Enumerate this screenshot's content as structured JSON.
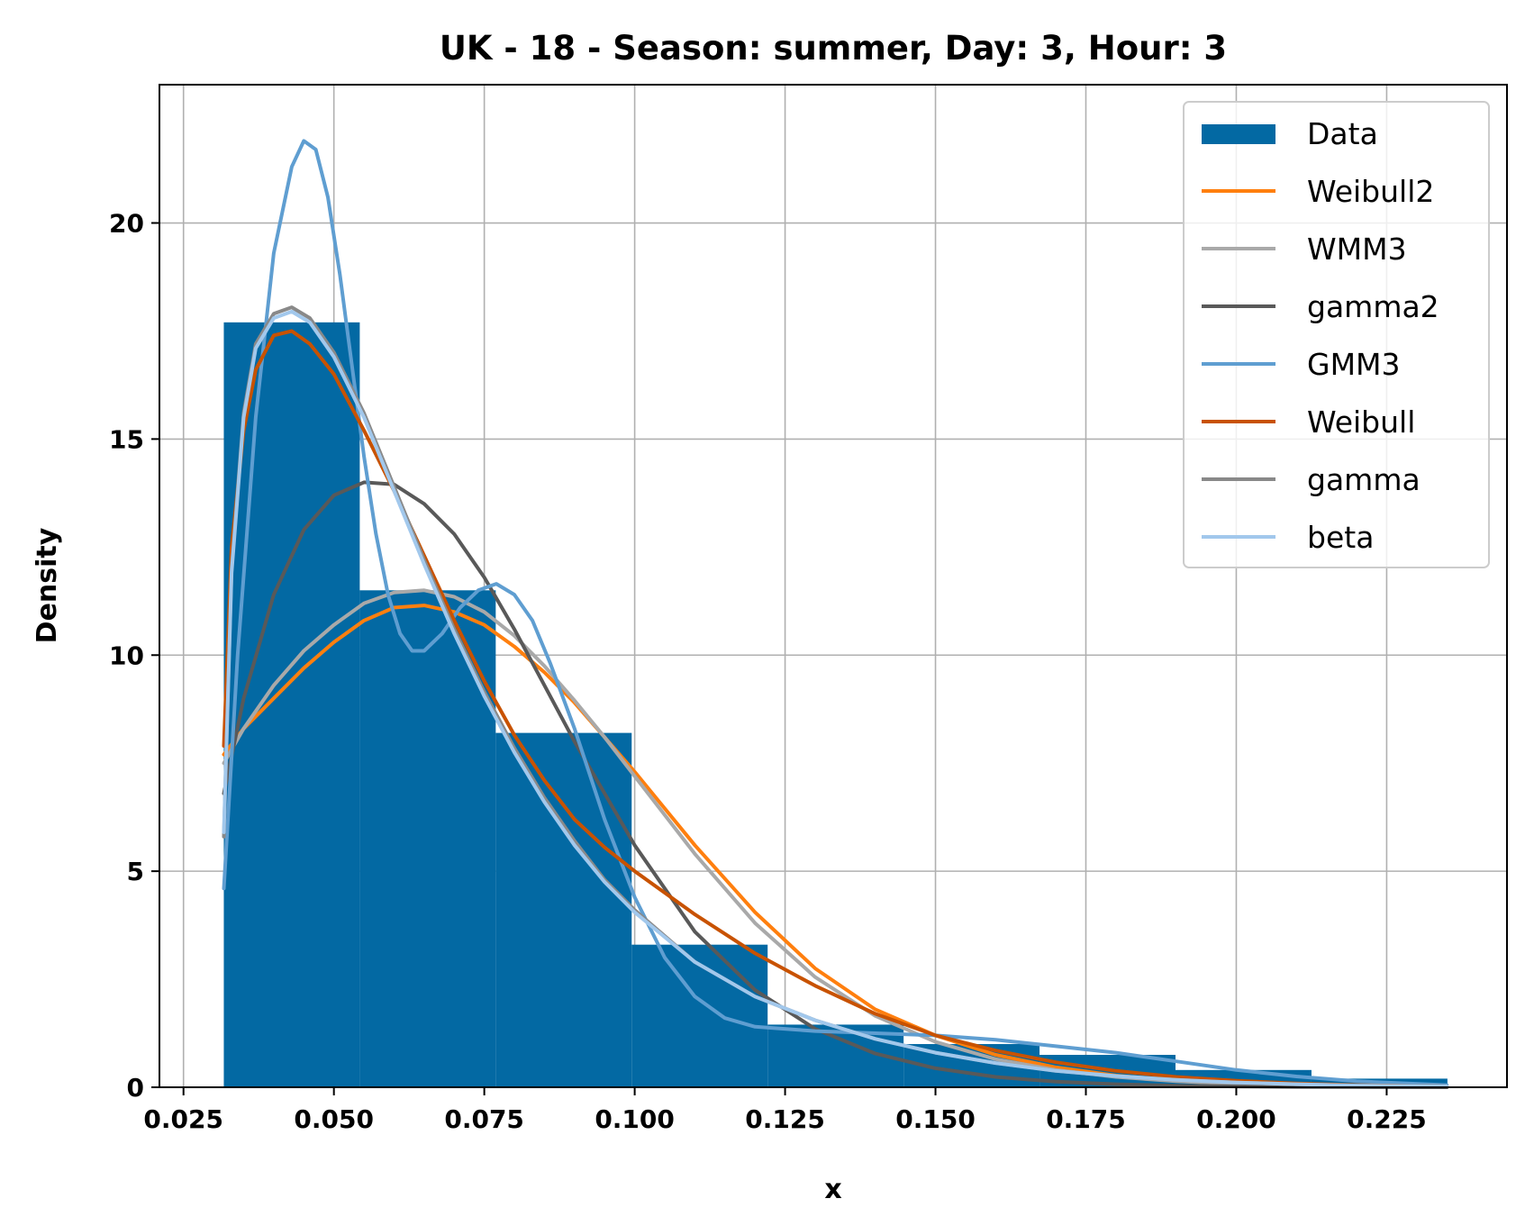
{
  "chart_data": {
    "type": "histogram+line",
    "title": "UK - 18 - Season: summer, Day: 3, Hour: 3",
    "xlabel": "x",
    "ylabel": "Density",
    "xlim": [
      0.021,
      0.245
    ],
    "ylim": [
      0,
      23.2
    ],
    "xticks": [
      0.025,
      0.05,
      0.075,
      0.1,
      0.125,
      0.15,
      0.175,
      0.2,
      0.225
    ],
    "xtick_labels": [
      "0.025",
      "0.050",
      "0.075",
      "0.100",
      "0.125",
      "0.150",
      "0.175",
      "0.200",
      "0.225"
    ],
    "yticks": [
      0,
      5,
      10,
      15,
      20
    ],
    "ytick_labels": [
      "0",
      "5",
      "10",
      "15",
      "20"
    ],
    "grid": true,
    "legend_position": "top-right",
    "histogram": {
      "name": "Data",
      "color": "#0369a3",
      "bin_edges": [
        0.0317,
        0.0543,
        0.0769,
        0.0995,
        0.1221,
        0.1447,
        0.1673,
        0.1899,
        0.2125,
        0.2351
      ],
      "densities": [
        17.7,
        11.5,
        8.2,
        3.3,
        1.45,
        1.0,
        0.75,
        0.4,
        0.2
      ]
    },
    "series": [
      {
        "name": "Weibull2",
        "color": "#ff7f0e",
        "x": [
          0.0317,
          0.035,
          0.04,
          0.045,
          0.05,
          0.055,
          0.06,
          0.065,
          0.07,
          0.075,
          0.08,
          0.085,
          0.09,
          0.095,
          0.1,
          0.11,
          0.12,
          0.13,
          0.14,
          0.15,
          0.16,
          0.17,
          0.18,
          0.19,
          0.2,
          0.21,
          0.22,
          0.235
        ],
        "y": [
          7.7,
          8.3,
          9.0,
          9.7,
          10.3,
          10.8,
          11.1,
          11.15,
          11.0,
          10.7,
          10.2,
          9.6,
          8.9,
          8.1,
          7.3,
          5.6,
          4.05,
          2.75,
          1.8,
          1.2,
          0.75,
          0.46,
          0.27,
          0.15,
          0.08,
          0.04,
          0.02,
          0.0
        ]
      },
      {
        "name": "WMM3",
        "color": "#a9a9a9",
        "x": [
          0.0317,
          0.035,
          0.04,
          0.045,
          0.05,
          0.055,
          0.06,
          0.065,
          0.07,
          0.075,
          0.08,
          0.085,
          0.09,
          0.095,
          0.1,
          0.11,
          0.12,
          0.13,
          0.14,
          0.15,
          0.16,
          0.17,
          0.18,
          0.19,
          0.2,
          0.21,
          0.22,
          0.235
        ],
        "y": [
          7.5,
          8.3,
          9.3,
          10.1,
          10.7,
          11.2,
          11.45,
          11.5,
          11.35,
          11.0,
          10.45,
          9.75,
          8.95,
          8.1,
          7.2,
          5.4,
          3.8,
          2.55,
          1.65,
          1.05,
          0.65,
          0.4,
          0.24,
          0.14,
          0.08,
          0.04,
          0.02,
          0.0
        ]
      },
      {
        "name": "gamma2",
        "color": "#595959",
        "x": [
          0.0317,
          0.035,
          0.04,
          0.045,
          0.05,
          0.055,
          0.06,
          0.065,
          0.07,
          0.075,
          0.08,
          0.085,
          0.09,
          0.095,
          0.1,
          0.11,
          0.12,
          0.13,
          0.14,
          0.15,
          0.16,
          0.17,
          0.18,
          0.19,
          0.2,
          0.21,
          0.22,
          0.235
        ],
        "y": [
          6.8,
          9.0,
          11.4,
          12.9,
          13.7,
          14.0,
          13.95,
          13.5,
          12.8,
          11.8,
          10.6,
          9.3,
          8.0,
          6.8,
          5.6,
          3.6,
          2.25,
          1.35,
          0.78,
          0.44,
          0.24,
          0.13,
          0.07,
          0.035,
          0.018,
          0.009,
          0.004,
          0.0
        ]
      },
      {
        "name": "GMM3",
        "color": "#5f9ed1",
        "x": [
          0.0317,
          0.034,
          0.037,
          0.04,
          0.043,
          0.045,
          0.047,
          0.049,
          0.051,
          0.053,
          0.055,
          0.057,
          0.059,
          0.061,
          0.063,
          0.065,
          0.068,
          0.071,
          0.074,
          0.077,
          0.08,
          0.083,
          0.086,
          0.09,
          0.095,
          0.1,
          0.105,
          0.11,
          0.115,
          0.12,
          0.13,
          0.14,
          0.15,
          0.16,
          0.17,
          0.18,
          0.19,
          0.2,
          0.21,
          0.22,
          0.235
        ],
        "y": [
          4.6,
          10.0,
          15.5,
          19.3,
          21.3,
          21.9,
          21.7,
          20.6,
          18.8,
          16.7,
          14.6,
          12.8,
          11.4,
          10.5,
          10.1,
          10.1,
          10.5,
          11.1,
          11.5,
          11.65,
          11.4,
          10.8,
          9.8,
          8.3,
          6.2,
          4.4,
          3.0,
          2.1,
          1.6,
          1.4,
          1.3,
          1.25,
          1.2,
          1.1,
          0.95,
          0.8,
          0.6,
          0.4,
          0.25,
          0.14,
          0.05
        ]
      },
      {
        "name": "Weibull",
        "color": "#c85200",
        "x": [
          0.0317,
          0.033,
          0.035,
          0.037,
          0.04,
          0.043,
          0.046,
          0.05,
          0.055,
          0.06,
          0.065,
          0.07,
          0.075,
          0.08,
          0.085,
          0.09,
          0.095,
          0.1,
          0.11,
          0.12,
          0.13,
          0.14,
          0.15,
          0.16,
          0.17,
          0.18,
          0.19,
          0.2,
          0.21,
          0.22,
          0.235
        ],
        "y": [
          7.9,
          12.5,
          15.2,
          16.6,
          17.4,
          17.5,
          17.2,
          16.5,
          15.2,
          13.8,
          12.3,
          10.8,
          9.4,
          8.15,
          7.1,
          6.2,
          5.55,
          5.0,
          4.0,
          3.1,
          2.35,
          1.7,
          1.2,
          0.85,
          0.58,
          0.38,
          0.24,
          0.15,
          0.09,
          0.05,
          0.02
        ]
      },
      {
        "name": "gamma",
        "color": "#898989",
        "x": [
          0.0317,
          0.033,
          0.035,
          0.037,
          0.04,
          0.043,
          0.046,
          0.05,
          0.055,
          0.06,
          0.065,
          0.07,
          0.075,
          0.08,
          0.085,
          0.09,
          0.095,
          0.1,
          0.11,
          0.12,
          0.13,
          0.14,
          0.15,
          0.16,
          0.17,
          0.18,
          0.19,
          0.2,
          0.21,
          0.22,
          0.235
        ],
        "y": [
          5.8,
          12.0,
          15.6,
          17.2,
          17.9,
          18.05,
          17.8,
          17.0,
          15.6,
          13.9,
          12.2,
          10.6,
          9.15,
          7.85,
          6.7,
          5.7,
          4.8,
          4.1,
          2.9,
          2.1,
          1.55,
          1.12,
          0.8,
          0.56,
          0.38,
          0.26,
          0.17,
          0.11,
          0.07,
          0.04,
          0.02
        ]
      },
      {
        "name": "beta",
        "color": "#a2c8ec",
        "x": [
          0.0317,
          0.033,
          0.035,
          0.037,
          0.04,
          0.043,
          0.046,
          0.05,
          0.055,
          0.06,
          0.065,
          0.07,
          0.075,
          0.08,
          0.085,
          0.09,
          0.095,
          0.1,
          0.11,
          0.12,
          0.13,
          0.14,
          0.15,
          0.16,
          0.17,
          0.18,
          0.19,
          0.2,
          0.21,
          0.22,
          0.235
        ],
        "y": [
          5.9,
          11.9,
          15.5,
          17.1,
          17.8,
          17.95,
          17.7,
          16.9,
          15.5,
          13.8,
          12.1,
          10.5,
          9.05,
          7.75,
          6.6,
          5.6,
          4.75,
          4.05,
          2.9,
          2.1,
          1.55,
          1.12,
          0.8,
          0.56,
          0.38,
          0.26,
          0.17,
          0.11,
          0.07,
          0.04,
          0.02
        ]
      }
    ]
  }
}
